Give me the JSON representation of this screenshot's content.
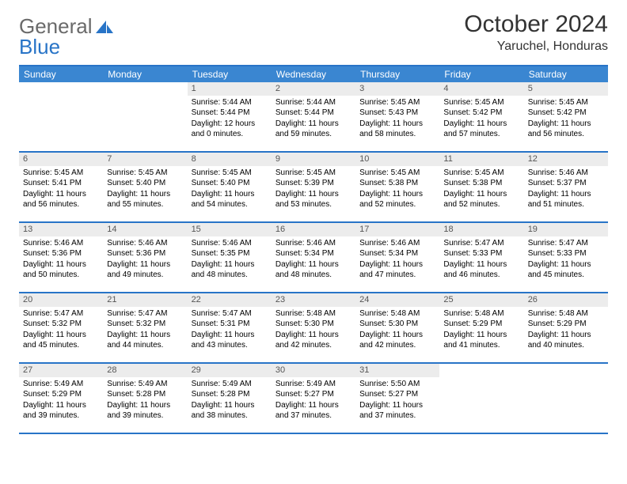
{
  "logo": {
    "text_a": "General",
    "text_b": "Blue"
  },
  "title": "October 2024",
  "location": "Yaruchel, Honduras",
  "colors": {
    "header_bg": "#3a86d1",
    "border": "#2874c7",
    "daynum_bg": "#ececec",
    "text": "#333333"
  },
  "weekdays": [
    "Sunday",
    "Monday",
    "Tuesday",
    "Wednesday",
    "Thursday",
    "Friday",
    "Saturday"
  ],
  "weeks": [
    [
      null,
      null,
      {
        "n": "1",
        "sr": "5:44 AM",
        "ss": "5:44 PM",
        "dl": "12 hours and 0 minutes."
      },
      {
        "n": "2",
        "sr": "5:44 AM",
        "ss": "5:44 PM",
        "dl": "11 hours and 59 minutes."
      },
      {
        "n": "3",
        "sr": "5:45 AM",
        "ss": "5:43 PM",
        "dl": "11 hours and 58 minutes."
      },
      {
        "n": "4",
        "sr": "5:45 AM",
        "ss": "5:42 PM",
        "dl": "11 hours and 57 minutes."
      },
      {
        "n": "5",
        "sr": "5:45 AM",
        "ss": "5:42 PM",
        "dl": "11 hours and 56 minutes."
      }
    ],
    [
      {
        "n": "6",
        "sr": "5:45 AM",
        "ss": "5:41 PM",
        "dl": "11 hours and 56 minutes."
      },
      {
        "n": "7",
        "sr": "5:45 AM",
        "ss": "5:40 PM",
        "dl": "11 hours and 55 minutes."
      },
      {
        "n": "8",
        "sr": "5:45 AM",
        "ss": "5:40 PM",
        "dl": "11 hours and 54 minutes."
      },
      {
        "n": "9",
        "sr": "5:45 AM",
        "ss": "5:39 PM",
        "dl": "11 hours and 53 minutes."
      },
      {
        "n": "10",
        "sr": "5:45 AM",
        "ss": "5:38 PM",
        "dl": "11 hours and 52 minutes."
      },
      {
        "n": "11",
        "sr": "5:45 AM",
        "ss": "5:38 PM",
        "dl": "11 hours and 52 minutes."
      },
      {
        "n": "12",
        "sr": "5:46 AM",
        "ss": "5:37 PM",
        "dl": "11 hours and 51 minutes."
      }
    ],
    [
      {
        "n": "13",
        "sr": "5:46 AM",
        "ss": "5:36 PM",
        "dl": "11 hours and 50 minutes."
      },
      {
        "n": "14",
        "sr": "5:46 AM",
        "ss": "5:36 PM",
        "dl": "11 hours and 49 minutes."
      },
      {
        "n": "15",
        "sr": "5:46 AM",
        "ss": "5:35 PM",
        "dl": "11 hours and 48 minutes."
      },
      {
        "n": "16",
        "sr": "5:46 AM",
        "ss": "5:34 PM",
        "dl": "11 hours and 48 minutes."
      },
      {
        "n": "17",
        "sr": "5:46 AM",
        "ss": "5:34 PM",
        "dl": "11 hours and 47 minutes."
      },
      {
        "n": "18",
        "sr": "5:47 AM",
        "ss": "5:33 PM",
        "dl": "11 hours and 46 minutes."
      },
      {
        "n": "19",
        "sr": "5:47 AM",
        "ss": "5:33 PM",
        "dl": "11 hours and 45 minutes."
      }
    ],
    [
      {
        "n": "20",
        "sr": "5:47 AM",
        "ss": "5:32 PM",
        "dl": "11 hours and 45 minutes."
      },
      {
        "n": "21",
        "sr": "5:47 AM",
        "ss": "5:32 PM",
        "dl": "11 hours and 44 minutes."
      },
      {
        "n": "22",
        "sr": "5:47 AM",
        "ss": "5:31 PM",
        "dl": "11 hours and 43 minutes."
      },
      {
        "n": "23",
        "sr": "5:48 AM",
        "ss": "5:30 PM",
        "dl": "11 hours and 42 minutes."
      },
      {
        "n": "24",
        "sr": "5:48 AM",
        "ss": "5:30 PM",
        "dl": "11 hours and 42 minutes."
      },
      {
        "n": "25",
        "sr": "5:48 AM",
        "ss": "5:29 PM",
        "dl": "11 hours and 41 minutes."
      },
      {
        "n": "26",
        "sr": "5:48 AM",
        "ss": "5:29 PM",
        "dl": "11 hours and 40 minutes."
      }
    ],
    [
      {
        "n": "27",
        "sr": "5:49 AM",
        "ss": "5:29 PM",
        "dl": "11 hours and 39 minutes."
      },
      {
        "n": "28",
        "sr": "5:49 AM",
        "ss": "5:28 PM",
        "dl": "11 hours and 39 minutes."
      },
      {
        "n": "29",
        "sr": "5:49 AM",
        "ss": "5:28 PM",
        "dl": "11 hours and 38 minutes."
      },
      {
        "n": "30",
        "sr": "5:49 AM",
        "ss": "5:27 PM",
        "dl": "11 hours and 37 minutes."
      },
      {
        "n": "31",
        "sr": "5:50 AM",
        "ss": "5:27 PM",
        "dl": "11 hours and 37 minutes."
      },
      null,
      null
    ]
  ],
  "labels": {
    "sunrise": "Sunrise:",
    "sunset": "Sunset:",
    "daylight": "Daylight:"
  }
}
